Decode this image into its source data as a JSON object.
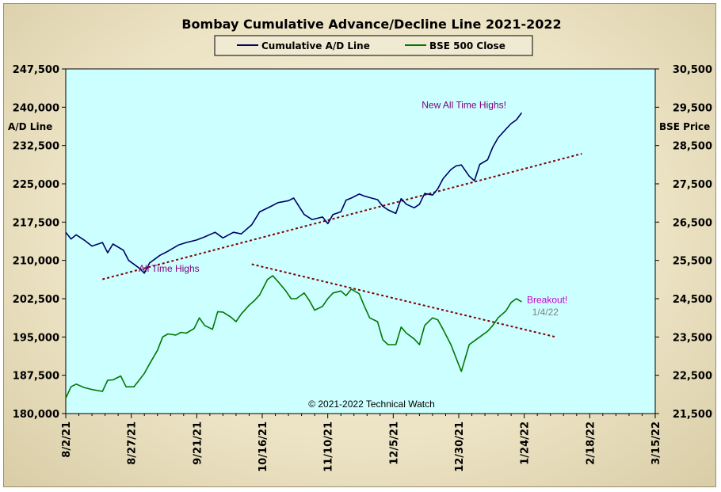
{
  "chart_data": {
    "type": "line",
    "title": "Bombay Cumulative Advance/Decline Line 2021-2022",
    "ylabel_left": "A/D Line",
    "ylabel_right": "BSE Price",
    "ylim_left": [
      180000,
      247500
    ],
    "ylim_right": [
      21500,
      30500
    ],
    "xlim": [
      "2021-08-02",
      "2022-03-15"
    ],
    "x_ticks": [
      "8/2/21",
      "8/27/21",
      "9/21/21",
      "10/16/21",
      "11/10/21",
      "12/5/21",
      "12/30/21",
      "1/24/22",
      "2/18/22",
      "3/15/22"
    ],
    "y_ticks_left": [
      "180,000",
      "187,500",
      "195,000",
      "202,500",
      "210,000",
      "217,500",
      "225,000",
      "232,500",
      "240,000",
      "247,500"
    ],
    "y_ticks_right": [
      "21,500",
      "22,500",
      "23,500",
      "24,500",
      "25,500",
      "26,500",
      "27,500",
      "28,500",
      "29,500",
      "30,500"
    ],
    "grid": false,
    "legend_position": "top-center",
    "background_color": "#ccffff",
    "series": [
      {
        "name": "Cumulative A/D Line",
        "axis": "left",
        "color": "#000066",
        "points": [
          [
            "2021-08-02",
            215500
          ],
          [
            "2021-08-04",
            214200
          ],
          [
            "2021-08-06",
            215000
          ],
          [
            "2021-08-09",
            214000
          ],
          [
            "2021-08-12",
            212800
          ],
          [
            "2021-08-16",
            213500
          ],
          [
            "2021-08-18",
            211500
          ],
          [
            "2021-08-20",
            213200
          ],
          [
            "2021-08-24",
            212000
          ],
          [
            "2021-08-26",
            210000
          ],
          [
            "2021-08-30",
            208500
          ],
          [
            "2021-09-01",
            207500
          ],
          [
            "2021-09-03",
            209500
          ],
          [
            "2021-09-07",
            211000
          ],
          [
            "2021-09-10",
            211800
          ],
          [
            "2021-09-14",
            213000
          ],
          [
            "2021-09-17",
            213500
          ],
          [
            "2021-09-21",
            214000
          ],
          [
            "2021-09-24",
            214600
          ],
          [
            "2021-09-28",
            215500
          ],
          [
            "2021-10-01",
            214400
          ],
          [
            "2021-10-05",
            215500
          ],
          [
            "2021-10-08",
            215200
          ],
          [
            "2021-10-12",
            217000
          ],
          [
            "2021-10-15",
            219500
          ],
          [
            "2021-10-19",
            220500
          ],
          [
            "2021-10-22",
            221300
          ],
          [
            "2021-10-26",
            221700
          ],
          [
            "2021-10-28",
            222200
          ],
          [
            "2021-11-01",
            219000
          ],
          [
            "2021-11-04",
            218000
          ],
          [
            "2021-11-08",
            218500
          ],
          [
            "2021-11-10",
            217200
          ],
          [
            "2021-11-12",
            219000
          ],
          [
            "2021-11-15",
            219500
          ],
          [
            "2021-11-17",
            221800
          ],
          [
            "2021-11-19",
            222200
          ],
          [
            "2021-11-22",
            223000
          ],
          [
            "2021-11-24",
            222600
          ],
          [
            "2021-11-26",
            222300
          ],
          [
            "2021-11-29",
            221900
          ],
          [
            "2021-12-01",
            220600
          ],
          [
            "2021-12-03",
            219900
          ],
          [
            "2021-12-06",
            219200
          ],
          [
            "2021-12-08",
            222100
          ],
          [
            "2021-12-10",
            221000
          ],
          [
            "2021-12-13",
            220300
          ],
          [
            "2021-12-15",
            221000
          ],
          [
            "2021-12-17",
            223100
          ],
          [
            "2021-12-20",
            222800
          ],
          [
            "2021-12-22",
            224000
          ],
          [
            "2021-12-24",
            226000
          ],
          [
            "2021-12-27",
            227800
          ],
          [
            "2021-12-29",
            228500
          ],
          [
            "2021-12-31",
            228700
          ],
          [
            "2022-01-03",
            226500
          ],
          [
            "2022-01-05",
            225600
          ],
          [
            "2022-01-07",
            228800
          ],
          [
            "2022-01-10",
            229700
          ],
          [
            "2022-01-12",
            232200
          ],
          [
            "2022-01-14",
            234000
          ],
          [
            "2022-01-17",
            235700
          ],
          [
            "2022-01-19",
            236800
          ],
          [
            "2022-01-21",
            237500
          ],
          [
            "2022-01-23",
            238900
          ]
        ]
      },
      {
        "name": "BSE 500 Close",
        "axis": "right",
        "color": "#007700",
        "points": [
          [
            "2021-08-02",
            21900
          ],
          [
            "2021-08-04",
            22200
          ],
          [
            "2021-08-06",
            22270
          ],
          [
            "2021-08-09",
            22180
          ],
          [
            "2021-08-12",
            22130
          ],
          [
            "2021-08-16",
            22080
          ],
          [
            "2021-08-18",
            22370
          ],
          [
            "2021-08-20",
            22380
          ],
          [
            "2021-08-23",
            22480
          ],
          [
            "2021-08-25",
            22200
          ],
          [
            "2021-08-28",
            22200
          ],
          [
            "2021-08-30",
            22370
          ],
          [
            "2021-09-01",
            22550
          ],
          [
            "2021-09-03",
            22800
          ],
          [
            "2021-09-06",
            23150
          ],
          [
            "2021-09-08",
            23500
          ],
          [
            "2021-09-10",
            23580
          ],
          [
            "2021-09-13",
            23550
          ],
          [
            "2021-09-15",
            23620
          ],
          [
            "2021-09-17",
            23600
          ],
          [
            "2021-09-20",
            23720
          ],
          [
            "2021-09-22",
            24000
          ],
          [
            "2021-09-24",
            23800
          ],
          [
            "2021-09-27",
            23700
          ],
          [
            "2021-09-29",
            24160
          ],
          [
            "2021-10-01",
            24150
          ],
          [
            "2021-10-04",
            24020
          ],
          [
            "2021-10-06",
            23900
          ],
          [
            "2021-10-08",
            24100
          ],
          [
            "2021-10-11",
            24330
          ],
          [
            "2021-10-13",
            24450
          ],
          [
            "2021-10-15",
            24600
          ],
          [
            "2021-10-18",
            25000
          ],
          [
            "2021-10-20",
            25100
          ],
          [
            "2021-10-22",
            24950
          ],
          [
            "2021-10-25",
            24700
          ],
          [
            "2021-10-27",
            24500
          ],
          [
            "2021-10-29",
            24500
          ],
          [
            "2021-11-01",
            24650
          ],
          [
            "2021-11-03",
            24450
          ],
          [
            "2021-11-05",
            24200
          ],
          [
            "2021-11-08",
            24300
          ],
          [
            "2021-11-10",
            24500
          ],
          [
            "2021-11-12",
            24650
          ],
          [
            "2021-11-15",
            24700
          ],
          [
            "2021-11-17",
            24580
          ],
          [
            "2021-11-19",
            24750
          ],
          [
            "2021-11-22",
            24630
          ],
          [
            "2021-11-24",
            24300
          ],
          [
            "2021-11-26",
            24000
          ],
          [
            "2021-11-29",
            23900
          ],
          [
            "2021-12-01",
            23430
          ],
          [
            "2021-12-03",
            23300
          ],
          [
            "2021-12-06",
            23300
          ],
          [
            "2021-12-08",
            23760
          ],
          [
            "2021-12-10",
            23600
          ],
          [
            "2021-12-13",
            23450
          ],
          [
            "2021-12-15",
            23300
          ],
          [
            "2021-12-17",
            23800
          ],
          [
            "2021-12-20",
            24000
          ],
          [
            "2021-12-22",
            23950
          ],
          [
            "2021-12-24",
            23700
          ],
          [
            "2021-12-27",
            23300
          ],
          [
            "2021-12-29",
            22950
          ],
          [
            "2021-12-31",
            22600
          ],
          [
            "2022-01-03",
            23300
          ],
          [
            "2022-01-05",
            23400
          ],
          [
            "2022-01-07",
            23500
          ],
          [
            "2022-01-10",
            23650
          ],
          [
            "2022-01-12",
            23800
          ],
          [
            "2022-01-14",
            24000
          ],
          [
            "2022-01-17",
            24180
          ],
          [
            "2022-01-19",
            24400
          ],
          [
            "2022-01-21",
            24500
          ],
          [
            "2022-01-23",
            24420
          ]
        ]
      }
    ],
    "trendlines": [
      {
        "axis": "left",
        "style": "dotted",
        "color": "#800000",
        "from": [
          "2021-08-16",
          206300
        ],
        "to": [
          "2022-02-15",
          230900
        ]
      },
      {
        "axis": "right",
        "style": "dotted",
        "color": "#800000",
        "from": [
          "2021-10-12",
          25400
        ],
        "to": [
          "2022-02-05",
          23500
        ]
      }
    ],
    "annotations": [
      {
        "text": "New All Time Highs!",
        "color": "#800080",
        "at": [
          "2022-01-01",
          239800
        ]
      },
      {
        "text": "All Time Highs",
        "color": "#800080",
        "at": [
          "2021-09-22",
          25200
        ]
      },
      {
        "text": "Breakout!",
        "color": "#cc00cc",
        "at": [
          "2022-01-25",
          24390
        ]
      },
      {
        "text": "1/4/22",
        "color": "#808080",
        "at": [
          "2022-01-27",
          24070
        ]
      }
    ],
    "copyright": "© 2021-2022  Technical Watch"
  }
}
